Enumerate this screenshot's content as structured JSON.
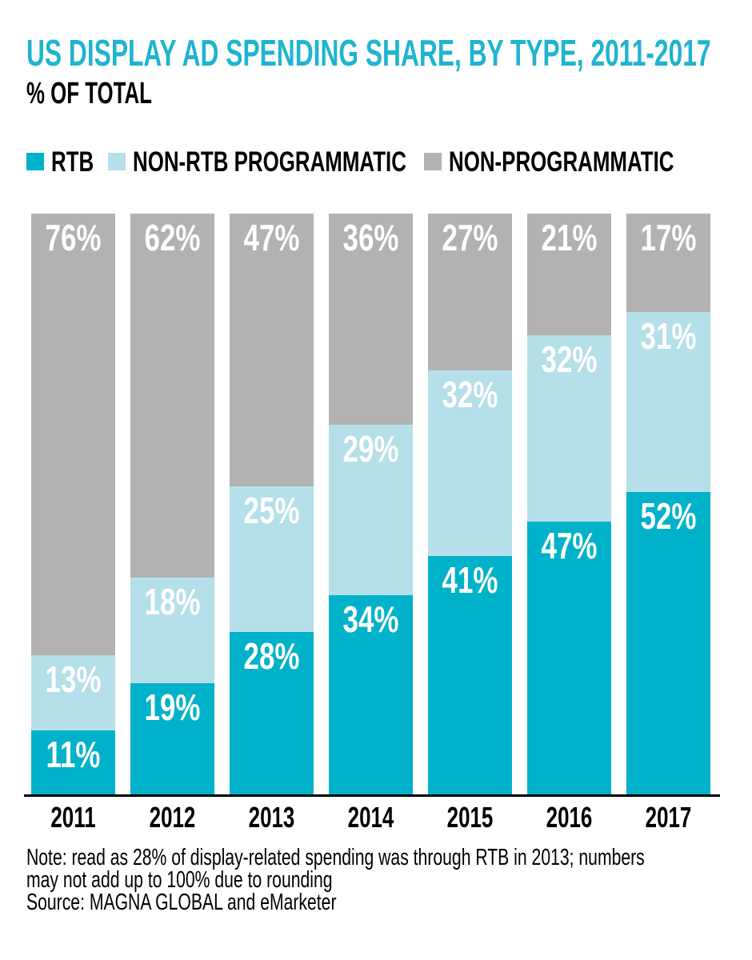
{
  "header": {
    "title": "US DISPLAY AD SPENDING SHARE, BY TYPE, 2011-2017",
    "subtitle": "% OF TOTAL"
  },
  "legend": {
    "items": [
      {
        "label": "RTB",
        "color": "#00b2c9"
      },
      {
        "label": "NON-RTB PROGRAMMATIC",
        "color": "#b5dfe9"
      },
      {
        "label": "NON-PROGRAMMATIC",
        "color": "#b2b2b2"
      }
    ]
  },
  "chart_data": {
    "type": "bar",
    "stacked": true,
    "orientation": "vertical",
    "unit": "%",
    "title": "US DISPLAY AD SPENDING SHARE, BY TYPE, 2011-2017",
    "ylabel": "% of total",
    "xlabel": "",
    "categories": [
      "2011",
      "2012",
      "2013",
      "2014",
      "2015",
      "2016",
      "2017"
    ],
    "series": [
      {
        "name": "RTB",
        "color": "#00b2c9",
        "values": [
          11,
          19,
          28,
          34,
          41,
          47,
          52
        ]
      },
      {
        "name": "NON-RTB PROGRAMMATIC",
        "color": "#b5dfe9",
        "values": [
          13,
          18,
          25,
          29,
          32,
          32,
          31
        ]
      },
      {
        "name": "NON-PROGRAMMATIC",
        "color": "#b2b2b2",
        "values": [
          76,
          62,
          47,
          36,
          27,
          21,
          17
        ]
      }
    ],
    "value_labels_visible": true,
    "value_label_position": "inside-top",
    "legend_position": "top",
    "grid": false,
    "ylim": [
      0,
      100
    ]
  },
  "footer": {
    "note_lines": [
      "Note: read as 28% of display-related spending was through RTB in 2013; numbers",
      "may not add up to 100% due to rounding"
    ],
    "source_line": "Source: MAGNA GLOBAL and eMarketer"
  },
  "colors": {
    "title": "#1fb4cf",
    "axis": "#000000",
    "value_label_text": "#ffffff",
    "background": "#ffffff"
  }
}
